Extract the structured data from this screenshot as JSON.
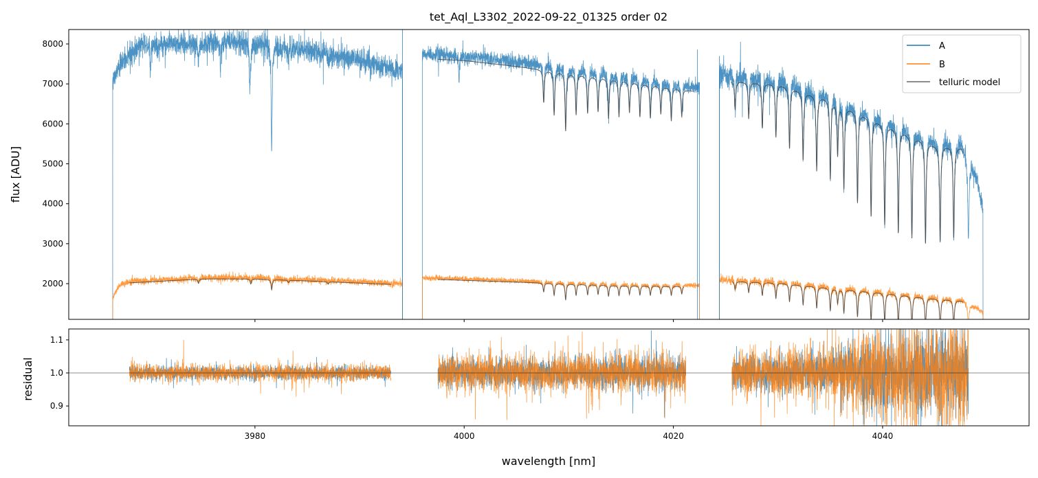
{
  "chart_data": [
    {
      "type": "line",
      "title": "tet_Aql_L3302_2022-09-22_01325  order 02",
      "xlabel": "",
      "ylabel": "flux [ADU]",
      "xlim": [
        3962.2,
        4054.0
      ],
      "ylim": [
        1106,
        8361
      ],
      "xticks": [
        3980,
        4000,
        4020,
        4040
      ],
      "yticks": [
        2000,
        3000,
        4000,
        5000,
        6000,
        7000,
        8000
      ],
      "grid": false,
      "legend": {
        "placement": "top-right",
        "entries": [
          "A",
          "B",
          "telluric model"
        ]
      },
      "colors": {
        "A": "#1f77b4",
        "B": "#ff7f0e",
        "telluric model": "#444444"
      },
      "segments": [
        {
          "range": [
            3966.4,
            3994.1
          ],
          "A_continuum": [
            [
              3966.4,
              7100
            ],
            [
              3967.5,
              7600
            ],
            [
              3969,
              7950
            ],
            [
              3975,
              8000
            ],
            [
              3978,
              8100
            ],
            [
              3982,
              7950
            ],
            [
              3986,
              7800
            ],
            [
              3990,
              7600
            ],
            [
              3994.1,
              7300
            ]
          ],
          "B_continuum": [
            [
              3966.4,
              1650
            ],
            [
              3967,
              1950
            ],
            [
              3968,
              2050
            ],
            [
              3975,
              2150
            ],
            [
              3980,
              2150
            ],
            [
              3985,
              2100
            ],
            [
              3994.1,
              2000
            ]
          ],
          "A_model_range": null,
          "B_model_range": [
            3968.0,
            3993.0
          ],
          "lines": [
            [
              3974.6,
              0.05
            ],
            [
              3979.6,
              0.06
            ],
            [
              3981.6,
              0.12
            ],
            [
              3983.2,
              0.03
            ],
            [
              3987.0,
              0.03
            ]
          ],
          "A_extra_lines": [
            [
              3976.7,
              0.08
            ],
            [
              3979.5,
              0.13
            ],
            [
              3981.6,
              0.24
            ],
            [
              3970.0,
              0.08
            ]
          ],
          "noise": 0.018
        },
        {
          "range": [
            3996.0,
            4022.5
          ],
          "A_continuum": [
            [
              3996.0,
              7750
            ],
            [
              4000,
              7700
            ],
            [
              4005,
              7550
            ],
            [
              4010,
              7380
            ],
            [
              4015,
              7200
            ],
            [
              4020,
              7000
            ],
            [
              4022.5,
              6900
            ]
          ],
          "B_continuum": [
            [
              3996.0,
              2150
            ],
            [
              4005,
              2070
            ],
            [
              4015,
              1980
            ],
            [
              4022.5,
              1960
            ]
          ],
          "A_model_range": [
            3997.5,
            4022.0
          ],
          "B_model_range": [
            3997.5,
            4021.0
          ],
          "lines": [
            [
              4007.6,
              0.11
            ],
            [
              4008.6,
              0.15
            ],
            [
              4009.7,
              0.2
            ],
            [
              4010.7,
              0.14
            ],
            [
              4011.8,
              0.13
            ],
            [
              4012.8,
              0.12
            ],
            [
              4013.8,
              0.14
            ],
            [
              4014.8,
              0.13
            ],
            [
              4015.8,
              0.11
            ],
            [
              4016.8,
              0.12
            ],
            [
              4017.8,
              0.12
            ],
            [
              4018.8,
              0.1
            ],
            [
              4019.8,
              0.12
            ],
            [
              4020.8,
              0.1
            ]
          ],
          "A_extra_lines": [
            [
              3999.5,
              0.08
            ]
          ],
          "noise": 0.012
        },
        {
          "range": [
            4024.4,
            4049.6
          ],
          "A_continuum": [
            [
              4024.4,
              7200
            ],
            [
              4030,
              7100
            ],
            [
              4035,
              6700
            ],
            [
              4040,
              6100
            ],
            [
              4045,
              5550
            ],
            [
              4047.5,
              5500
            ],
            [
              4049,
              4700
            ],
            [
              4049.6,
              3800
            ]
          ],
          "B_continuum": [
            [
              4024.4,
              2100
            ],
            [
              4030,
              2050
            ],
            [
              4035,
              1920
            ],
            [
              4040,
              1800
            ],
            [
              4045,
              1650
            ],
            [
              4047.5,
              1600
            ],
            [
              4049.6,
              1300
            ]
          ],
          "A_model_range": [
            4025.5,
            4047.7
          ],
          "B_model_range": [
            4025.6,
            4047.7
          ],
          "lines": [
            [
              4025.9,
              0.1
            ],
            [
              4027.2,
              0.13
            ],
            [
              4028.5,
              0.16
            ],
            [
              4029.8,
              0.19
            ],
            [
              4031.1,
              0.22
            ],
            [
              4032.4,
              0.25
            ],
            [
              4033.7,
              0.28
            ],
            [
              4035.0,
              0.3
            ],
            [
              4035.7,
              0.2
            ],
            [
              4036.3,
              0.32
            ],
            [
              4037.6,
              0.36
            ],
            [
              4038.9,
              0.4
            ],
            [
              4040.2,
              0.42
            ],
            [
              4041.5,
              0.44
            ],
            [
              4042.8,
              0.45
            ],
            [
              4044.1,
              0.46
            ],
            [
              4045.5,
              0.44
            ],
            [
              4046.8,
              0.42
            ],
            [
              4048.2,
              0.4
            ]
          ],
          "A_extra_lines": [],
          "noise": 0.02
        }
      ],
      "spikes_A": [
        [
          3994.1,
          8400
        ],
        [
          4022.3,
          7860
        ],
        [
          4024.4,
          7700
        ]
      ]
    },
    {
      "type": "line",
      "title": "",
      "xlabel": "wavelength [nm]",
      "ylabel": "residual",
      "xlim": [
        3962.2,
        4054.0
      ],
      "ylim": [
        0.84,
        1.133
      ],
      "xticks": [
        3980,
        4000,
        4020,
        4040
      ],
      "yticks": [
        0.9,
        1.0,
        1.1
      ],
      "reference_line": 1.0,
      "residual_ranges": [
        [
          3968.0,
          3993.0
        ],
        [
          3997.5,
          4021.2
        ],
        [
          4025.6,
          4048.2
        ]
      ],
      "residual_sigma_B": [
        [
          3968.0,
          0.012
        ],
        [
          3993.0,
          0.012
        ],
        [
          3997.5,
          0.025
        ],
        [
          4021.2,
          0.03
        ],
        [
          4025.6,
          0.03
        ],
        [
          4035,
          0.04
        ],
        [
          4040,
          0.07
        ],
        [
          4048.2,
          0.08
        ]
      ]
    }
  ]
}
